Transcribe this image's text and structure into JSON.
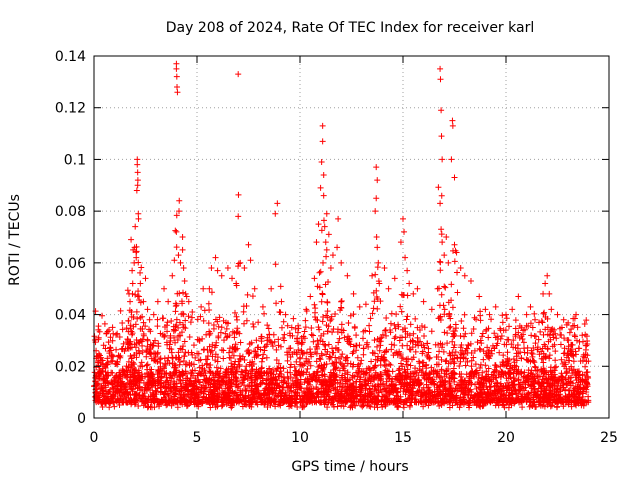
{
  "chart_data": {
    "type": "scatter",
    "title": "Day 208 of 2024, Rate Of TEC Index for receiver karl",
    "xlabel": "GPS time / hours",
    "ylabel": "ROTI / TECUs",
    "xlim": [
      0,
      25
    ],
    "ylim": [
      0,
      0.14
    ],
    "xticks": [
      0,
      5,
      10,
      15,
      20,
      25
    ],
    "yticks": [
      0,
      0.02,
      0.04,
      0.06,
      0.08,
      0.1,
      0.12,
      0.14
    ],
    "xtick_labels": [
      "0",
      "5",
      "10",
      "15",
      "20",
      "25"
    ],
    "ytick_labels": [
      "0",
      "0.02",
      "0.04",
      "0.06",
      "0.08",
      "0.1",
      "0.12",
      "0.14"
    ],
    "grid": true,
    "marker": "+",
    "color": "#ff0000",
    "series": [
      {
        "name": "ROTI",
        "points": [
          [
            0.1,
            0.026
          ],
          [
            0.2,
            0.022
          ],
          [
            0.3,
            0.018
          ],
          [
            0.5,
            0.02
          ],
          [
            1.8,
            0.069
          ],
          [
            1.9,
            0.065
          ],
          [
            1.85,
            0.057
          ],
          [
            1.95,
            0.06
          ],
          [
            2.0,
            0.074
          ],
          [
            1.7,
            0.048
          ],
          [
            1.75,
            0.045
          ],
          [
            1.82,
            0.041
          ],
          [
            1.88,
            0.052
          ],
          [
            1.92,
            0.039
          ],
          [
            2.05,
            0.062
          ],
          [
            2.08,
            0.088
          ],
          [
            2.1,
            0.1
          ],
          [
            2.1,
            0.098
          ],
          [
            2.12,
            0.095
          ],
          [
            2.13,
            0.092
          ],
          [
            2.12,
            0.09
          ],
          [
            2.15,
            0.079
          ],
          [
            2.16,
            0.077
          ],
          [
            2.18,
            0.047
          ],
          [
            2.25,
            0.052
          ],
          [
            2.4,
            0.045
          ],
          [
            2.5,
            0.054
          ],
          [
            2.6,
            0.042
          ],
          [
            2.7,
            0.038
          ],
          [
            2.9,
            0.04
          ],
          [
            3.1,
            0.045
          ],
          [
            3.4,
            0.05
          ],
          [
            3.6,
            0.045
          ],
          [
            3.8,
            0.055
          ],
          [
            3.9,
            0.061
          ],
          [
            4.0,
            0.137
          ],
          [
            4.0,
            0.135
          ],
          [
            4.02,
            0.132
          ],
          [
            4.03,
            0.128
          ],
          [
            4.05,
            0.126
          ],
          [
            4.0,
            0.072
          ],
          [
            4.1,
            0.063
          ],
          [
            4.2,
            0.06
          ],
          [
            4.3,
            0.065
          ],
          [
            4.35,
            0.058
          ],
          [
            4.4,
            0.053
          ],
          [
            4.45,
            0.048
          ],
          [
            4.3,
            0.07
          ],
          [
            4.5,
            0.047
          ],
          [
            4.6,
            0.045
          ],
          [
            5.2,
            0.043
          ],
          [
            5.3,
            0.05
          ],
          [
            5.6,
            0.05
          ],
          [
            5.7,
            0.058
          ],
          [
            5.9,
            0.062
          ],
          [
            6.0,
            0.057
          ],
          [
            6.2,
            0.055
          ],
          [
            6.5,
            0.058
          ],
          [
            6.7,
            0.054
          ],
          [
            6.9,
            0.052
          ],
          [
            7.0,
            0.133
          ],
          [
            7.0,
            0.078
          ],
          [
            7.1,
            0.06
          ],
          [
            7.3,
            0.058
          ],
          [
            7.5,
            0.067
          ],
          [
            7.6,
            0.061
          ],
          [
            7.8,
            0.05
          ],
          [
            8.2,
            0.043
          ],
          [
            8.6,
            0.05
          ],
          [
            8.8,
            0.079
          ],
          [
            8.9,
            0.083
          ],
          [
            9.1,
            0.045
          ],
          [
            9.3,
            0.04
          ],
          [
            9.6,
            0.035
          ],
          [
            9.9,
            0.033
          ],
          [
            10.3,
            0.042
          ],
          [
            10.5,
            0.047
          ],
          [
            10.7,
            0.054
          ],
          [
            10.8,
            0.068
          ],
          [
            10.9,
            0.075
          ],
          [
            11.0,
            0.089
          ],
          [
            11.05,
            0.099
          ],
          [
            11.1,
            0.113
          ],
          [
            11.1,
            0.107
          ],
          [
            11.15,
            0.094
          ],
          [
            11.15,
            0.086
          ],
          [
            11.2,
            0.074
          ],
          [
            11.25,
            0.068
          ],
          [
            11.3,
            0.079
          ],
          [
            11.3,
            0.065
          ],
          [
            11.4,
            0.071
          ],
          [
            11.5,
            0.058
          ],
          [
            11.6,
            0.063
          ],
          [
            11.8,
            0.066
          ],
          [
            11.85,
            0.077
          ],
          [
            12.0,
            0.06
          ],
          [
            12.3,
            0.055
          ],
          [
            12.6,
            0.048
          ],
          [
            12.9,
            0.043
          ],
          [
            13.2,
            0.044
          ],
          [
            13.5,
            0.055
          ],
          [
            13.7,
            0.097
          ],
          [
            13.75,
            0.092
          ],
          [
            13.7,
            0.085
          ],
          [
            13.65,
            0.08
          ],
          [
            13.72,
            0.07
          ],
          [
            13.75,
            0.066
          ],
          [
            13.8,
            0.06
          ],
          [
            13.85,
            0.052
          ],
          [
            14.1,
            0.058
          ],
          [
            14.3,
            0.05
          ],
          [
            14.6,
            0.054
          ],
          [
            14.9,
            0.068
          ],
          [
            15.0,
            0.077
          ],
          [
            15.05,
            0.072
          ],
          [
            15.1,
            0.062
          ],
          [
            15.2,
            0.057
          ],
          [
            15.3,
            0.052
          ],
          [
            15.5,
            0.048
          ],
          [
            15.7,
            0.05
          ],
          [
            16.0,
            0.045
          ],
          [
            16.4,
            0.042
          ],
          [
            16.8,
            0.135
          ],
          [
            16.82,
            0.131
          ],
          [
            16.85,
            0.119
          ],
          [
            16.87,
            0.109
          ],
          [
            16.9,
            0.1
          ],
          [
            16.8,
            0.083
          ],
          [
            16.85,
            0.073
          ],
          [
            16.9,
            0.068
          ],
          [
            17.0,
            0.063
          ],
          [
            17.1,
            0.07
          ],
          [
            17.2,
            0.06
          ],
          [
            17.4,
            0.115
          ],
          [
            17.42,
            0.113
          ],
          [
            17.35,
            0.1
          ],
          [
            17.5,
            0.093
          ],
          [
            17.5,
            0.067
          ],
          [
            17.6,
            0.064
          ],
          [
            17.8,
            0.058
          ],
          [
            18.0,
            0.055
          ],
          [
            18.3,
            0.053
          ],
          [
            18.7,
            0.047
          ],
          [
            19.0,
            0.042
          ],
          [
            19.2,
            0.04
          ],
          [
            19.5,
            0.043
          ],
          [
            20.0,
            0.04
          ],
          [
            20.3,
            0.042
          ],
          [
            20.6,
            0.047
          ],
          [
            21.0,
            0.04
          ],
          [
            21.3,
            0.035
          ],
          [
            21.6,
            0.037
          ],
          [
            21.8,
            0.048
          ],
          [
            21.9,
            0.052
          ],
          [
            22.0,
            0.055
          ],
          [
            22.1,
            0.048
          ],
          [
            22.2,
            0.042
          ],
          [
            22.5,
            0.04
          ],
          [
            22.8,
            0.038
          ],
          [
            23.1,
            0.033
          ],
          [
            23.4,
            0.04
          ],
          [
            23.7,
            0.032
          ],
          [
            23.9,
            0.028
          ],
          [
            24.0,
            0.022
          ]
        ],
        "baseline_hours": [
          0,
          24
        ],
        "baseline_range": [
          0.002,
          0.04
        ]
      }
    ]
  }
}
